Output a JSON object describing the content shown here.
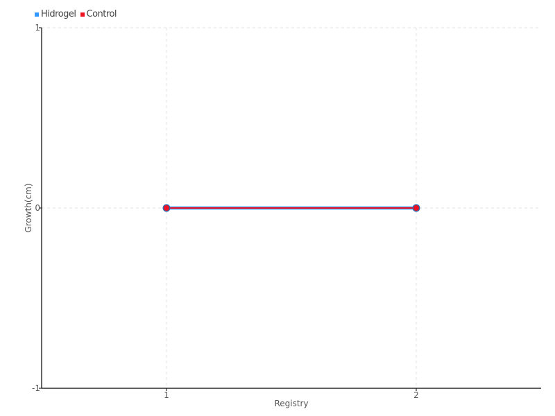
{
  "chart_data": {
    "type": "line",
    "title": "",
    "xlabel": "Registry",
    "ylabel": "Growth(cm)",
    "x": [
      1,
      2
    ],
    "xlim": [
      0.5,
      2.5
    ],
    "ylim": [
      -1,
      1
    ],
    "xticks": [
      "1",
      "2"
    ],
    "yticks": [
      "1",
      "0",
      "-1"
    ],
    "grid": true,
    "legend_position": "top-left",
    "series": [
      {
        "name": "Hidrogel",
        "values": [
          0,
          0
        ],
        "color": "#3399ff"
      },
      {
        "name": "Control",
        "values": [
          0,
          0
        ],
        "color": "#ee1122"
      }
    ]
  }
}
